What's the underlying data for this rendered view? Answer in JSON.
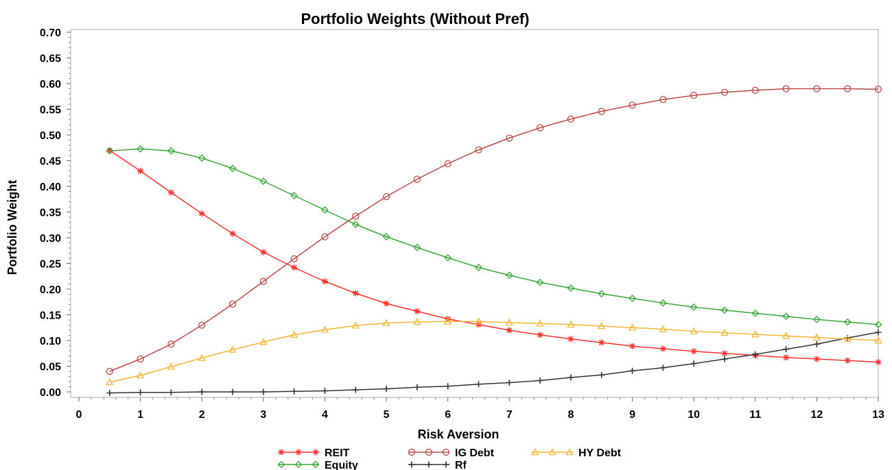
{
  "chart_data": {
    "type": "line",
    "title": "Portfolio Weights (Without Pref)",
    "xlabel": "Risk Aversion",
    "ylabel": "Portfolio Weight",
    "xlim": [
      0,
      13
    ],
    "ylim": [
      0,
      0.7
    ],
    "x_ticks": [
      "0",
      "1",
      "2",
      "3",
      "4",
      "5",
      "6",
      "7",
      "8",
      "9",
      "10",
      "11",
      "12",
      "13"
    ],
    "y_ticks": [
      "0.00",
      "0.05",
      "0.10",
      "0.15",
      "0.20",
      "0.25",
      "0.30",
      "0.35",
      "0.40",
      "0.45",
      "0.50",
      "0.55",
      "0.60",
      "0.65",
      "0.70"
    ],
    "grid": false,
    "legend_position": "bottom",
    "x": [
      0.5,
      1,
      1.5,
      2,
      2.5,
      3,
      3.5,
      4,
      4.5,
      5,
      5.5,
      6,
      6.5,
      7,
      7.5,
      8,
      8.5,
      9,
      9.5,
      10,
      10.5,
      11,
      11.5,
      12,
      12.5,
      13
    ],
    "series": [
      {
        "name": "REIT",
        "color": "#ff3030",
        "marker": "star",
        "values": [
          0.47,
          0.43,
          0.388,
          0.347,
          0.308,
          0.272,
          0.242,
          0.215,
          0.192,
          0.172,
          0.157,
          0.142,
          0.131,
          0.12,
          0.111,
          0.103,
          0.096,
          0.089,
          0.084,
          0.079,
          0.075,
          0.071,
          0.067,
          0.064,
          0.061,
          0.058
        ]
      },
      {
        "name": "Equity",
        "color": "#3aa53a",
        "marker": "diamond",
        "values": [
          0.469,
          0.473,
          0.469,
          0.455,
          0.435,
          0.41,
          0.382,
          0.354,
          0.326,
          0.302,
          0.281,
          0.261,
          0.242,
          0.227,
          0.213,
          0.202,
          0.191,
          0.182,
          0.173,
          0.165,
          0.159,
          0.153,
          0.147,
          0.141,
          0.136,
          0.131
        ]
      },
      {
        "name": "IG Debt",
        "color": "#b84a4a",
        "marker": "circle",
        "values": [
          0.04,
          0.064,
          0.093,
          0.13,
          0.171,
          0.215,
          0.259,
          0.302,
          0.342,
          0.38,
          0.414,
          0.444,
          0.471,
          0.494,
          0.514,
          0.531,
          0.546,
          0.558,
          0.569,
          0.577,
          0.583,
          0.587,
          0.59,
          0.59,
          0.59,
          0.589
        ]
      },
      {
        "name": "Rf",
        "color": "#333333",
        "marker": "plus",
        "values": [
          -0.002,
          -0.001,
          -0.001,
          0.0,
          0.0,
          0.0,
          0.001,
          0.002,
          0.004,
          0.006,
          0.009,
          0.011,
          0.015,
          0.018,
          0.022,
          0.028,
          0.033,
          0.041,
          0.047,
          0.055,
          0.064,
          0.073,
          0.083,
          0.093,
          0.105,
          0.116
        ]
      },
      {
        "name": "HY Debt",
        "color": "#f5b533",
        "marker": "triangle",
        "values": [
          0.019,
          0.032,
          0.049,
          0.066,
          0.082,
          0.097,
          0.111,
          0.121,
          0.129,
          0.134,
          0.136,
          0.137,
          0.137,
          0.135,
          0.133,
          0.131,
          0.128,
          0.125,
          0.122,
          0.118,
          0.115,
          0.112,
          0.109,
          0.106,
          0.103,
          0.1
        ]
      }
    ]
  }
}
